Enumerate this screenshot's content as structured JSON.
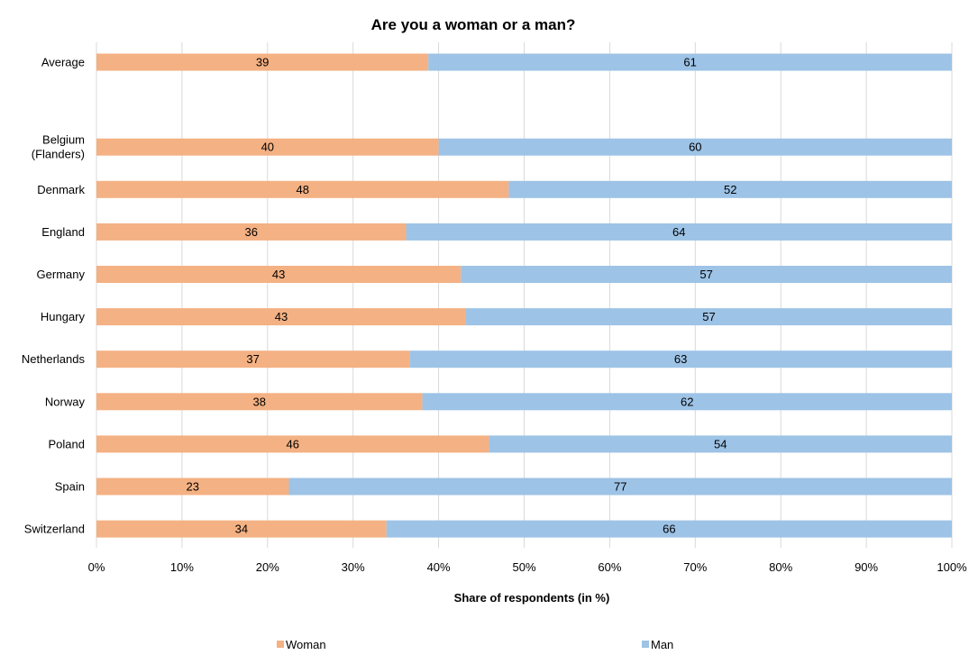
{
  "chart_data": {
    "type": "bar",
    "orientation": "horizontal",
    "stacked": true,
    "title": "Are you a woman or a man?",
    "xlabel": "Share of respondents (in %)",
    "ylabel": "",
    "xlim": [
      0,
      100
    ],
    "x_ticks": [
      "0%",
      "10%",
      "20%",
      "30%",
      "40%",
      "50%",
      "60%",
      "70%",
      "80%",
      "90%",
      "100%"
    ],
    "grid": "vertical",
    "legend_position": "bottom",
    "categories": [
      "Average",
      "",
      "Belgium (Flanders)",
      "Denmark",
      "England",
      "Germany",
      "Hungary",
      "Netherlands",
      "Norway",
      "Poland",
      "Spain",
      "Switzerland"
    ],
    "series": [
      {
        "name": "Woman",
        "color": "#F4B183",
        "values": [
          38.8,
          null,
          40.0,
          48.2,
          36.2,
          42.6,
          43.2,
          36.6,
          38.1,
          45.9,
          22.5,
          33.9
        ],
        "labels": [
          "39",
          "",
          "40",
          "48",
          "36",
          "43",
          "43",
          "37",
          "38",
          "46",
          "23",
          "34"
        ]
      },
      {
        "name": "Man",
        "color": "#9DC3E6",
        "values": [
          61.2,
          null,
          60.0,
          51.8,
          63.8,
          57.4,
          56.8,
          63.4,
          61.9,
          54.1,
          77.5,
          66.1
        ],
        "labels": [
          "61",
          "",
          "60",
          "52",
          "64",
          "57",
          "57",
          "63",
          "62",
          "54",
          "77",
          "66"
        ]
      }
    ]
  }
}
